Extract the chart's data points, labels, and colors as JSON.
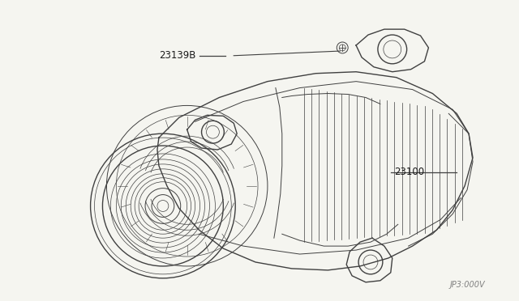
{
  "background_color": "#f5f5f0",
  "line_color": "#404040",
  "label_color": "#1a1a1a",
  "label_23139B": "23139B",
  "label_23100": "23100",
  "diagram_code": "JP3:000V",
  "fig_width": 6.4,
  "fig_height": 3.72,
  "dpi": 100,
  "lw_main": 1.0,
  "lw_med": 0.7,
  "lw_thin": 0.5
}
